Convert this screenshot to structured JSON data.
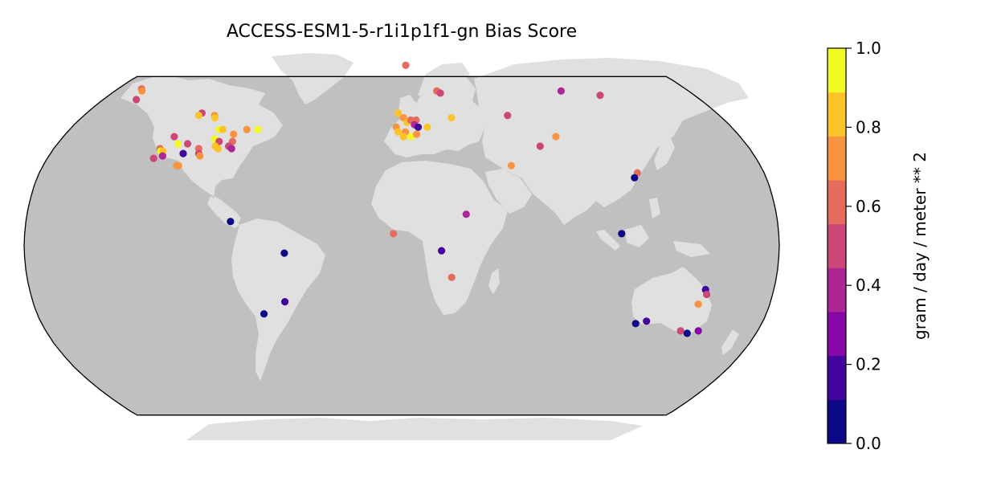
{
  "chart_data": {
    "type": "scatter",
    "title": "ACCESS-ESM1-5-r1i1p1f1-gn Bias Score",
    "projection": "robinson",
    "colorbar": {
      "label": "gram / day / meter ** 2",
      "min": 0.0,
      "max": 1.0,
      "ticks": [
        "0.0",
        "0.2",
        "0.4",
        "0.6",
        "0.8",
        "1.0"
      ],
      "bins": [
        "#0d0887",
        "#41049d",
        "#8606a6",
        "#ac2694",
        "#cc4778",
        "#e56b5d",
        "#f89441",
        "#fdc328",
        "#f0f921"
      ]
    },
    "colors": {
      "ocean": "#c0c0c0",
      "land": "#e0e0e0",
      "outline": "#000000"
    },
    "sites": [
      {
        "lon": -165,
        "lat": 66,
        "v": 0.65
      },
      {
        "lon": -163,
        "lat": 65,
        "v": 0.7
      },
      {
        "lon": -160,
        "lat": 61,
        "v": 0.55
      },
      {
        "lon": -114,
        "lat": 55,
        "v": 0.5
      },
      {
        "lon": -115,
        "lat": 54,
        "v": 0.85
      },
      {
        "lon": -106,
        "lat": 54,
        "v": 0.7
      },
      {
        "lon": -105,
        "lat": 53,
        "v": 0.8
      },
      {
        "lon": -99,
        "lat": 48,
        "v": 0.95
      },
      {
        "lon": -97,
        "lat": 48,
        "v": 0.85
      },
      {
        "lon": -90,
        "lat": 46,
        "v": 0.75
      },
      {
        "lon": -84,
        "lat": 48,
        "v": 0.75
      },
      {
        "lon": -78,
        "lat": 48,
        "v": 0.95
      },
      {
        "lon": -121,
        "lat": 45,
        "v": 0.45
      },
      {
        "lon": -117,
        "lat": 42,
        "v": 0.9
      },
      {
        "lon": -112,
        "lat": 42,
        "v": 0.45
      },
      {
        "lon": -105,
        "lat": 40,
        "v": 0.6
      },
      {
        "lon": -99,
        "lat": 44,
        "v": 1.0
      },
      {
        "lon": -96,
        "lat": 43,
        "v": 0.55
      },
      {
        "lon": -97,
        "lat": 41,
        "v": 0.85
      },
      {
        "lon": -95,
        "lat": 40,
        "v": 0.8
      },
      {
        "lon": -89,
        "lat": 43,
        "v": 0.65
      },
      {
        "lon": -90,
        "lat": 41,
        "v": 0.5
      },
      {
        "lon": -88,
        "lat": 40,
        "v": 0.4
      },
      {
        "lon": -125,
        "lat": 40,
        "v": 0.6
      },
      {
        "lon": -124,
        "lat": 39,
        "v": 0.9
      },
      {
        "lon": -123,
        "lat": 39,
        "v": 0.85
      },
      {
        "lon": -126,
        "lat": 36,
        "v": 0.55
      },
      {
        "lon": -122,
        "lat": 37,
        "v": 0.4
      },
      {
        "lon": -112,
        "lat": 38,
        "v": 0.2
      },
      {
        "lon": -104,
        "lat": 38,
        "v": 0.55
      },
      {
        "lon": -103,
        "lat": 37,
        "v": 0.75
      },
      {
        "lon": -113,
        "lat": 33,
        "v": 0.75
      },
      {
        "lon": -112,
        "lat": 33,
        "v": 0.7
      },
      {
        "lon": -82,
        "lat": 10,
        "v": 0.05
      },
      {
        "lon": -56,
        "lat": -3,
        "v": 0.05
      },
      {
        "lon": -57,
        "lat": -23,
        "v": 0.2
      },
      {
        "lon": -68,
        "lat": -28,
        "v": 0.05
      },
      {
        "lon": 3,
        "lat": 78,
        "v": 0.65
      },
      {
        "lon": 22,
        "lat": 65,
        "v": 0.65
      },
      {
        "lon": 24,
        "lat": 64,
        "v": 0.5
      },
      {
        "lon": -2,
        "lat": 55,
        "v": 0.85
      },
      {
        "lon": 1,
        "lat": 53,
        "v": 0.75
      },
      {
        "lon": 3,
        "lat": 51,
        "v": 0.8
      },
      {
        "lon": 5,
        "lat": 52,
        "v": 0.65
      },
      {
        "lon": 8,
        "lat": 52,
        "v": 0.6
      },
      {
        "lon": 7,
        "lat": 50,
        "v": 0.4
      },
      {
        "lon": 9,
        "lat": 49,
        "v": 0.15
      },
      {
        "lon": -3,
        "lat": 49,
        "v": 0.75
      },
      {
        "lon": -2,
        "lat": 47,
        "v": 0.85
      },
      {
        "lon": 2,
        "lat": 47,
        "v": 0.7
      },
      {
        "lon": 1,
        "lat": 45,
        "v": 0.85
      },
      {
        "lon": 5,
        "lat": 45,
        "v": 0.9
      },
      {
        "lon": 8,
        "lat": 46,
        "v": 0.75
      },
      {
        "lon": 14,
        "lat": 49,
        "v": 0.85
      },
      {
        "lon": 28,
        "lat": 53,
        "v": 0.85
      },
      {
        "lon": 60,
        "lat": 54,
        "v": 0.55
      },
      {
        "lon": 100,
        "lat": 65,
        "v": 0.4
      },
      {
        "lon": 122,
        "lat": 63,
        "v": 0.45
      },
      {
        "lon": 72,
        "lat": 41,
        "v": 0.5
      },
      {
        "lon": 82,
        "lat": 45,
        "v": 0.75
      },
      {
        "lon": 55,
        "lat": 33,
        "v": 0.75
      },
      {
        "lon": 117,
        "lat": 30,
        "v": 0.6
      },
      {
        "lon": 115,
        "lat": 28,
        "v": 0.05
      },
      {
        "lon": 105,
        "lat": 5,
        "v": 0.05
      },
      {
        "lon": -4,
        "lat": 5,
        "v": 0.6
      },
      {
        "lon": 31,
        "lat": 13,
        "v": 0.4
      },
      {
        "lon": 19,
        "lat": -2,
        "v": 0.2
      },
      {
        "lon": 24,
        "lat": -13,
        "v": 0.6
      },
      {
        "lon": 147,
        "lat": -18,
        "v": 0.2
      },
      {
        "lon": 148,
        "lat": -20,
        "v": 0.45
      },
      {
        "lon": 145,
        "lat": -24,
        "v": 0.75
      },
      {
        "lon": 117,
        "lat": -32,
        "v": 0.05
      },
      {
        "lon": 122,
        "lat": -31,
        "v": 0.15
      },
      {
        "lon": 141,
        "lat": -35,
        "v": 0.45
      },
      {
        "lon": 145,
        "lat": -36,
        "v": 0.05
      },
      {
        "lon": 150,
        "lat": -35,
        "v": 0.3
      }
    ]
  }
}
